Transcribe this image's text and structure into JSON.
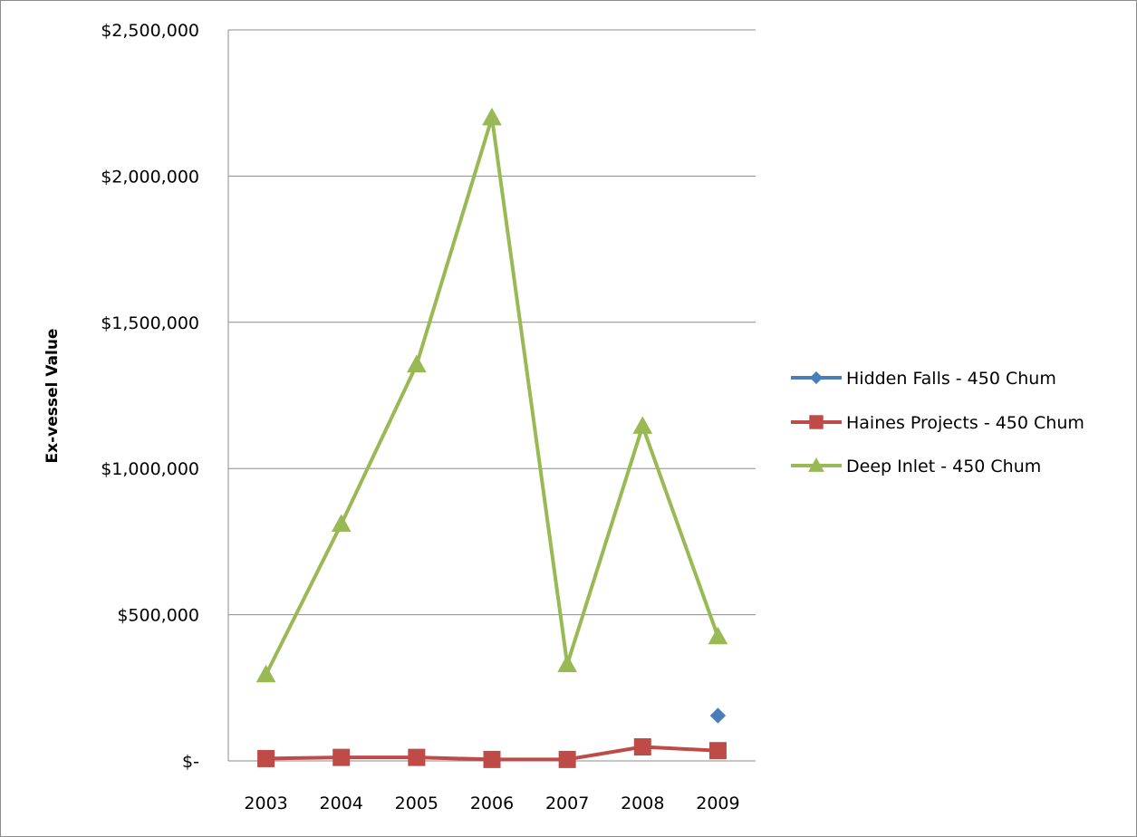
{
  "chart_data": {
    "type": "line",
    "title": "",
    "xlabel": "",
    "ylabel": "Ex-vessel Value",
    "x": [
      "2003",
      "2004",
      "2005",
      "2006",
      "2007",
      "2008",
      "2009"
    ],
    "ylim": [
      0,
      2500000
    ],
    "yticks": [
      0,
      500000,
      1000000,
      1500000,
      2000000,
      2500000
    ],
    "ytick_labels": [
      "$-",
      "$500,000",
      "$1,000,000",
      "$1,500,000",
      "$2,000,000",
      "$2,500,000"
    ],
    "grid": "horizontal",
    "legend_position": "right",
    "series": [
      {
        "name": "Hidden Falls - 450 Chum",
        "color": "#4a7ebb",
        "marker": "diamond",
        "values": [
          null,
          null,
          null,
          null,
          null,
          null,
          155000
        ]
      },
      {
        "name": "Haines Projects - 450 Chum",
        "color": "#be4b48",
        "marker": "square",
        "values": [
          8000,
          12000,
          12000,
          5000,
          5000,
          48000,
          35000
        ]
      },
      {
        "name": "Deep Inlet - 450 Chum",
        "color": "#98b954",
        "marker": "triangle",
        "values": [
          295000,
          810000,
          1355000,
          2200000,
          330000,
          1145000,
          425000
        ]
      }
    ]
  }
}
